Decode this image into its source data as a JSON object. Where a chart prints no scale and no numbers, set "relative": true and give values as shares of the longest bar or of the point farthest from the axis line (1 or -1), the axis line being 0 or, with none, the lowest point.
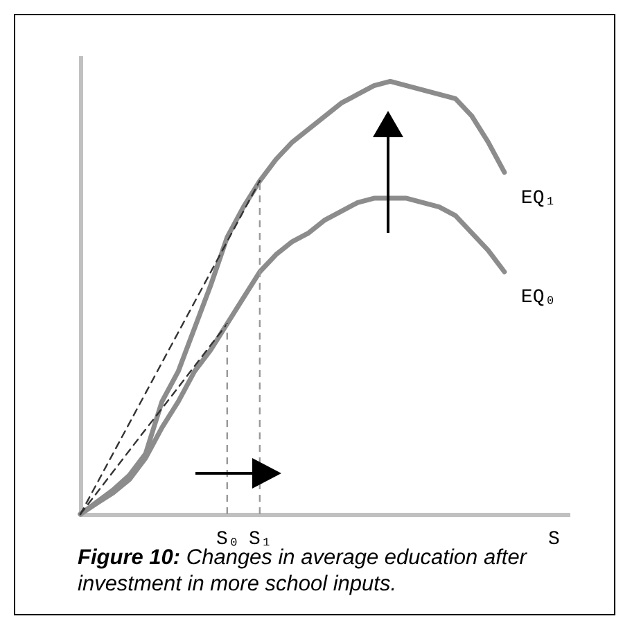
{
  "chart_data": {
    "type": "line",
    "relative": true,
    "categories": [
      null,
      null,
      null,
      null,
      null,
      null,
      null,
      null,
      null,
      "S₀",
      null,
      "S₁",
      null,
      null,
      null,
      null,
      null,
      null,
      null,
      null,
      null,
      null,
      null,
      null,
      null,
      null,
      null,
      null,
      null,
      "S",
      null
    ],
    "series": [
      {
        "name": "EQ₁",
        "color": "#8c8c8c",
        "values": [
          0,
          0.028,
          0.056,
          0.09,
          0.14,
          0.26,
          0.33,
          0.43,
          0.53,
          0.64,
          0.71,
          0.77,
          0.82,
          0.86,
          0.89,
          0.92,
          0.95,
          0.97,
          0.99,
          1.0,
          0.99,
          0.98,
          0.97,
          0.96,
          0.92,
          0.86,
          0.79,
          null,
          null,
          null,
          null
        ]
      },
      {
        "name": "EQ₀",
        "color": "#8c8c8c",
        "values": [
          0,
          0.025,
          0.049,
          0.08,
          0.13,
          0.2,
          0.26,
          0.33,
          0.38,
          0.44,
          0.5,
          0.56,
          0.6,
          0.63,
          0.65,
          0.68,
          0.7,
          0.72,
          0.73,
          0.73,
          0.73,
          0.72,
          0.71,
          0.69,
          0.65,
          0.61,
          0.56,
          null,
          null,
          null,
          null
        ]
      },
      {
        "color": "#333333",
        "line_style": "dashed",
        "values": [
          0,
          0.07,
          0.14,
          0.21,
          0.28,
          0.35,
          0.42,
          0.49,
          0.56,
          0.63,
          0.7,
          0.77,
          null,
          null,
          null,
          null,
          null,
          null,
          null,
          null,
          null,
          null,
          null,
          null,
          null,
          null,
          null,
          null,
          null,
          null,
          null
        ]
      },
      {
        "color": "#333333",
        "line_style": "dashed",
        "values": [
          0,
          0.049,
          0.098,
          0.147,
          0.196,
          0.244,
          0.293,
          0.342,
          0.391,
          0.44,
          null,
          null,
          null,
          null,
          null,
          null,
          null,
          null,
          null,
          null,
          null,
          null,
          null,
          null,
          null,
          null,
          null,
          null,
          null,
          null,
          null
        ]
      }
    ],
    "ref_lines": [
      {
        "axis": "x",
        "value": "S₀",
        "color": "#999999",
        "line_style": "dashed"
      },
      {
        "axis": "x",
        "value": "S₁",
        "color": "#999999",
        "line_style": "dashed"
      }
    ],
    "annotations": [
      "Figure 10: Changes in average education after investment in more school inputs."
    ]
  }
}
